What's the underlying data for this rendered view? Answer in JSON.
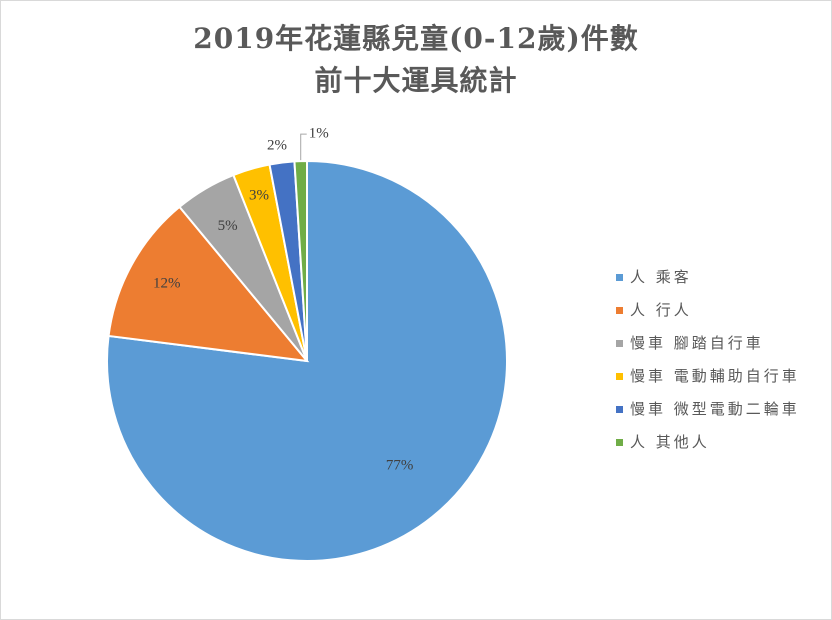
{
  "chart_data": {
    "type": "pie",
    "title_lines": [
      "2019年花蓮縣兒童(0-12歲)件數",
      "前十大運具統計"
    ],
    "categories": [
      "人 乘客",
      "人 行人",
      "慢車 腳踏自行車",
      "慢車 電動輔助自行車",
      "慢車 微型電動二輪車",
      "人 其他人"
    ],
    "values": [
      77,
      12,
      5,
      3,
      2,
      1
    ],
    "data_labels": [
      "77%",
      "12%",
      "5%",
      "3%",
      "2%",
      "1%"
    ],
    "colors": [
      "#5b9bd5",
      "#ed7d31",
      "#a5a5a5",
      "#ffc000",
      "#4472c4",
      "#70ad47"
    ],
    "legend_position": "right"
  }
}
